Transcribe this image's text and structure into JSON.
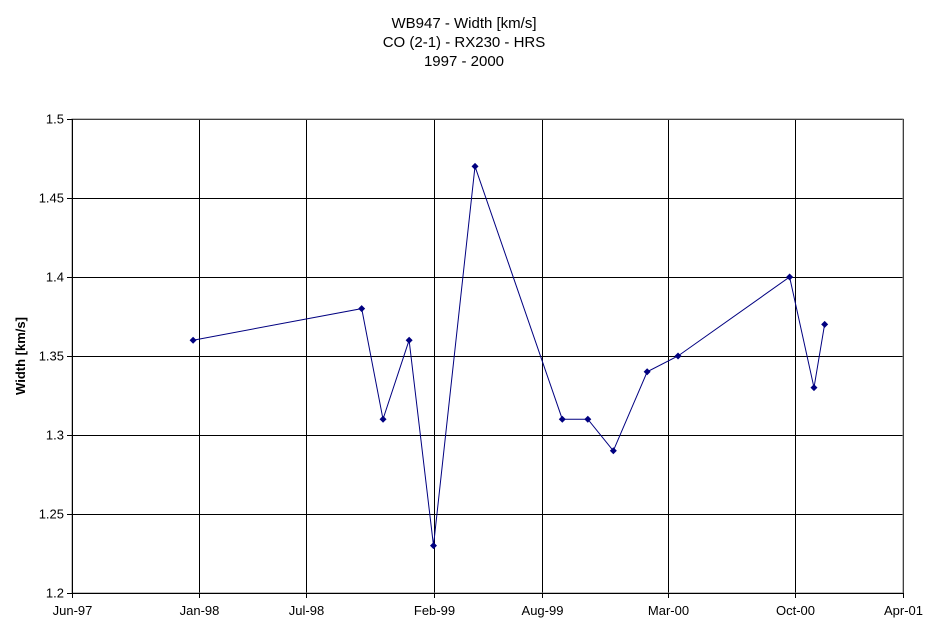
{
  "chart_data": {
    "type": "line",
    "title_lines": [
      "WB947 - Width [km/s]",
      "CO (2-1) - RX230 - HRS",
      "1997 - 2000"
    ],
    "xlabel": "",
    "ylabel": "Width [km/s]",
    "xlim": [
      "1997-06-01",
      "2001-04-01"
    ],
    "ylim": [
      1.2,
      1.5
    ],
    "x_ticks": [
      "1997-06-01",
      "1998-01-01",
      "1998-07-01",
      "1999-02-01",
      "1999-08-01",
      "2000-03-01",
      "2000-10-01",
      "2001-04-01"
    ],
    "x_tick_labels": [
      "Jun-97",
      "Jan-98",
      "Jul-98",
      "Feb-99",
      "Aug-99",
      "Mar-00",
      "Oct-00",
      "Apr-01"
    ],
    "y_ticks": [
      1.2,
      1.25,
      1.3,
      1.35,
      1.4,
      1.45,
      1.5
    ],
    "y_tick_labels": [
      "1.2",
      "1.25",
      "1.3",
      "1.35",
      "1.4",
      "1.45",
      "1.5"
    ],
    "grid": true,
    "legend": "none",
    "series": [
      {
        "color": "#000080",
        "marker": "diamond",
        "x": [
          "1997-12-22",
          "1998-10-02",
          "1998-11-07",
          "1998-12-21",
          "1999-01-31",
          "1999-04-11",
          "1999-09-05",
          "1999-10-18",
          "1999-11-30",
          "2000-01-26",
          "2000-03-18",
          "2000-09-22",
          "2000-11-02",
          "2000-11-20"
        ],
        "values": [
          1.36,
          1.38,
          1.31,
          1.36,
          1.23,
          1.47,
          1.31,
          1.31,
          1.29,
          1.34,
          1.35,
          1.4,
          1.33,
          1.37
        ]
      }
    ]
  }
}
